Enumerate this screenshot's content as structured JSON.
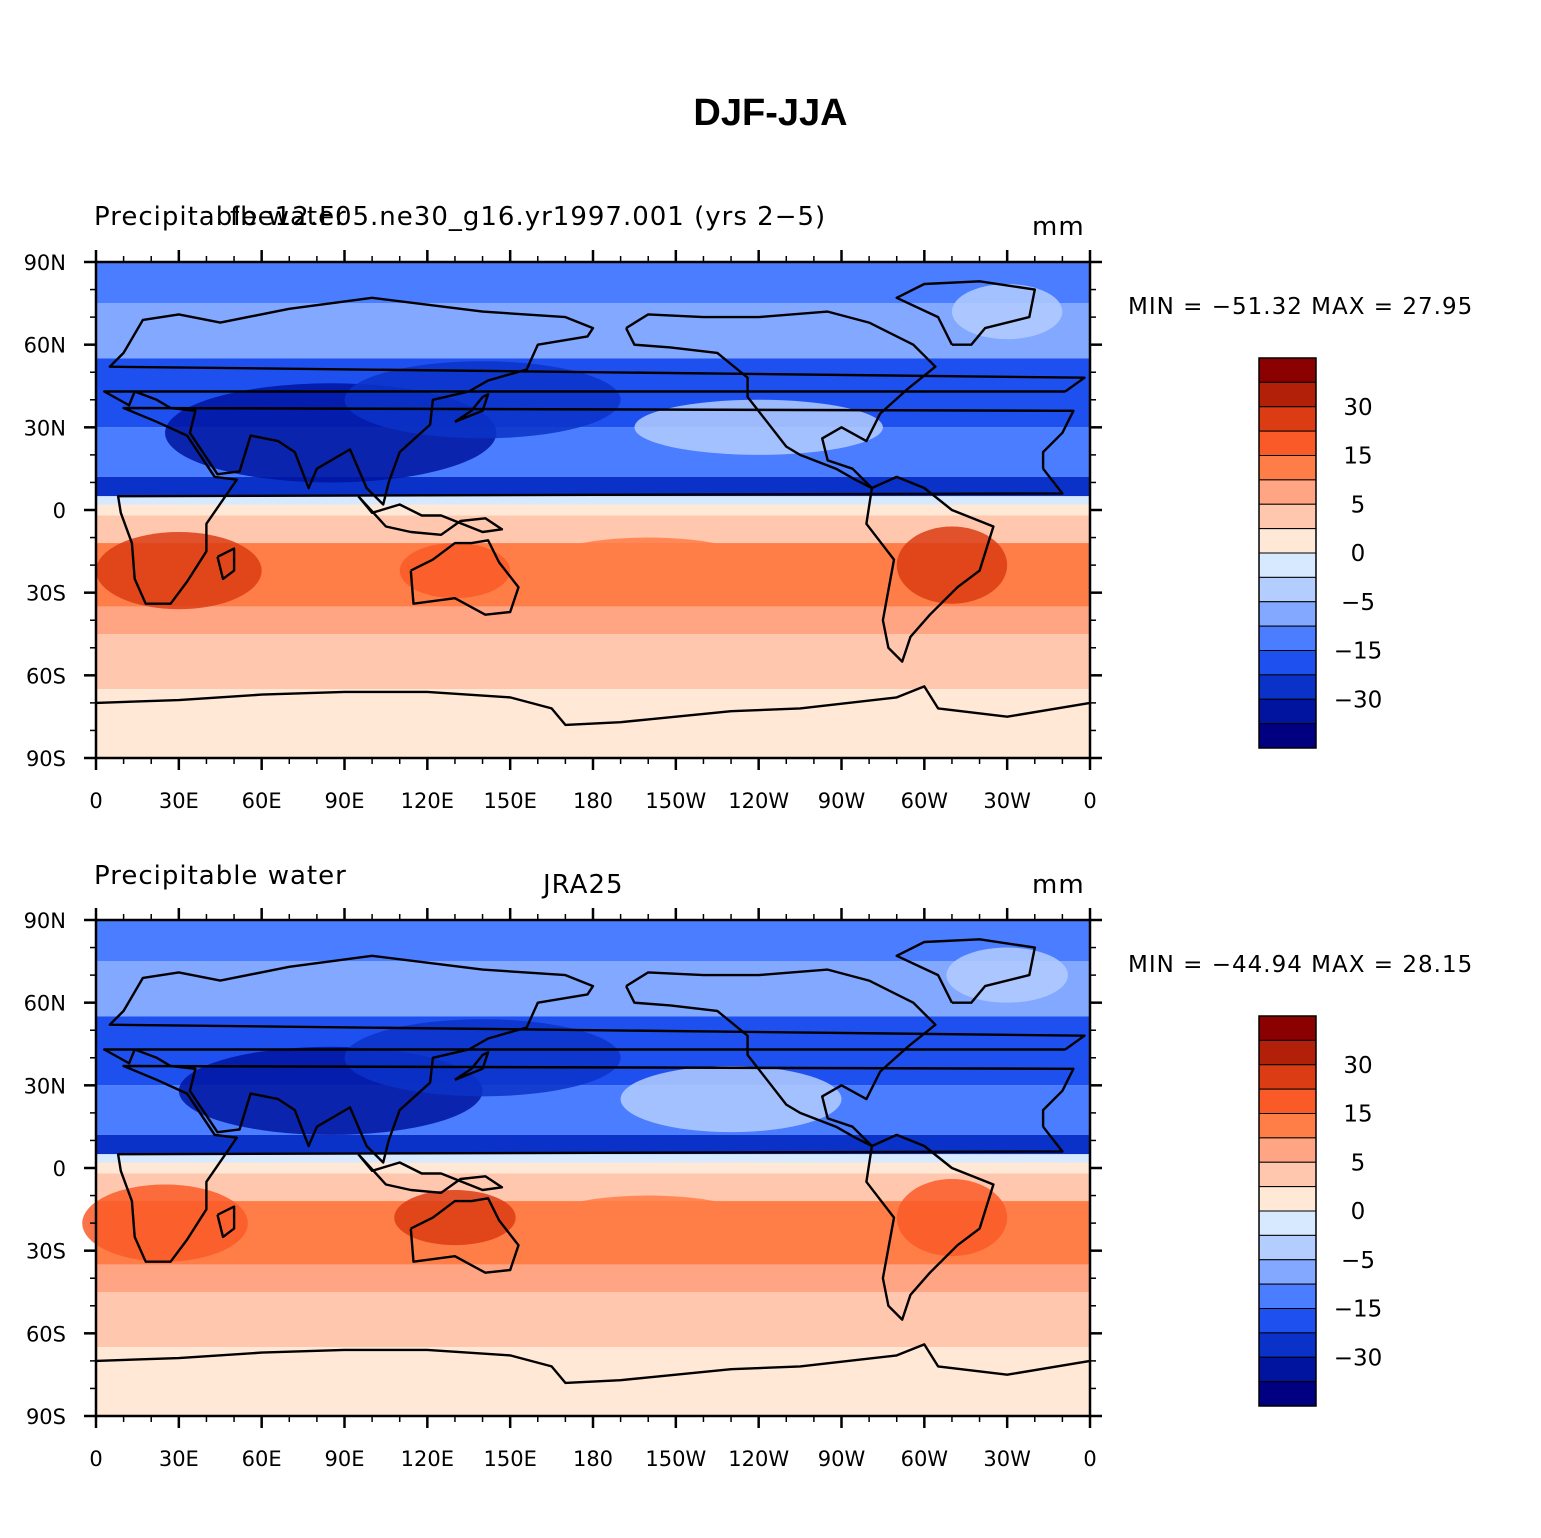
{
  "title": "DJF-JJA",
  "lon_labels": [
    "0",
    "30E",
    "60E",
    "90E",
    "120E",
    "150E",
    "180",
    "150W",
    "120W",
    "90W",
    "60W",
    "30W",
    "0"
  ],
  "lat_labels": [
    "90N",
    "60N",
    "30N",
    "0",
    "30S",
    "60S",
    "90S"
  ],
  "colorbar": {
    "labels": [
      "30",
      "15",
      "5",
      "0",
      "−5",
      "−15",
      "−30"
    ],
    "colors": [
      "#8b0000",
      "#b2200a",
      "#dc3c14",
      "#fa5a28",
      "#ff7d46",
      "#ffa584",
      "#ffc8ae",
      "#ffe8d6",
      "#d6e9ff",
      "#b4cdff",
      "#82a8ff",
      "#4a7dff",
      "#1e50f0",
      "#0a32c8",
      "#0014a0",
      "#000080"
    ]
  },
  "panels": [
    {
      "left_title": "Precipitable water",
      "center_title": "fbe12.F05.ne30_g16.yr1997.001 (yrs 2−5)",
      "units": "mm",
      "min_max": "MIN = −51.32 MAX =   27.95",
      "min": -51.32,
      "max": 27.95
    },
    {
      "left_title": "Precipitable water",
      "center_title": "JRA25",
      "units": "mm",
      "min_max": "MIN = −44.94 MAX =   28.15",
      "min": -44.94,
      "max": 28.15
    }
  ]
}
